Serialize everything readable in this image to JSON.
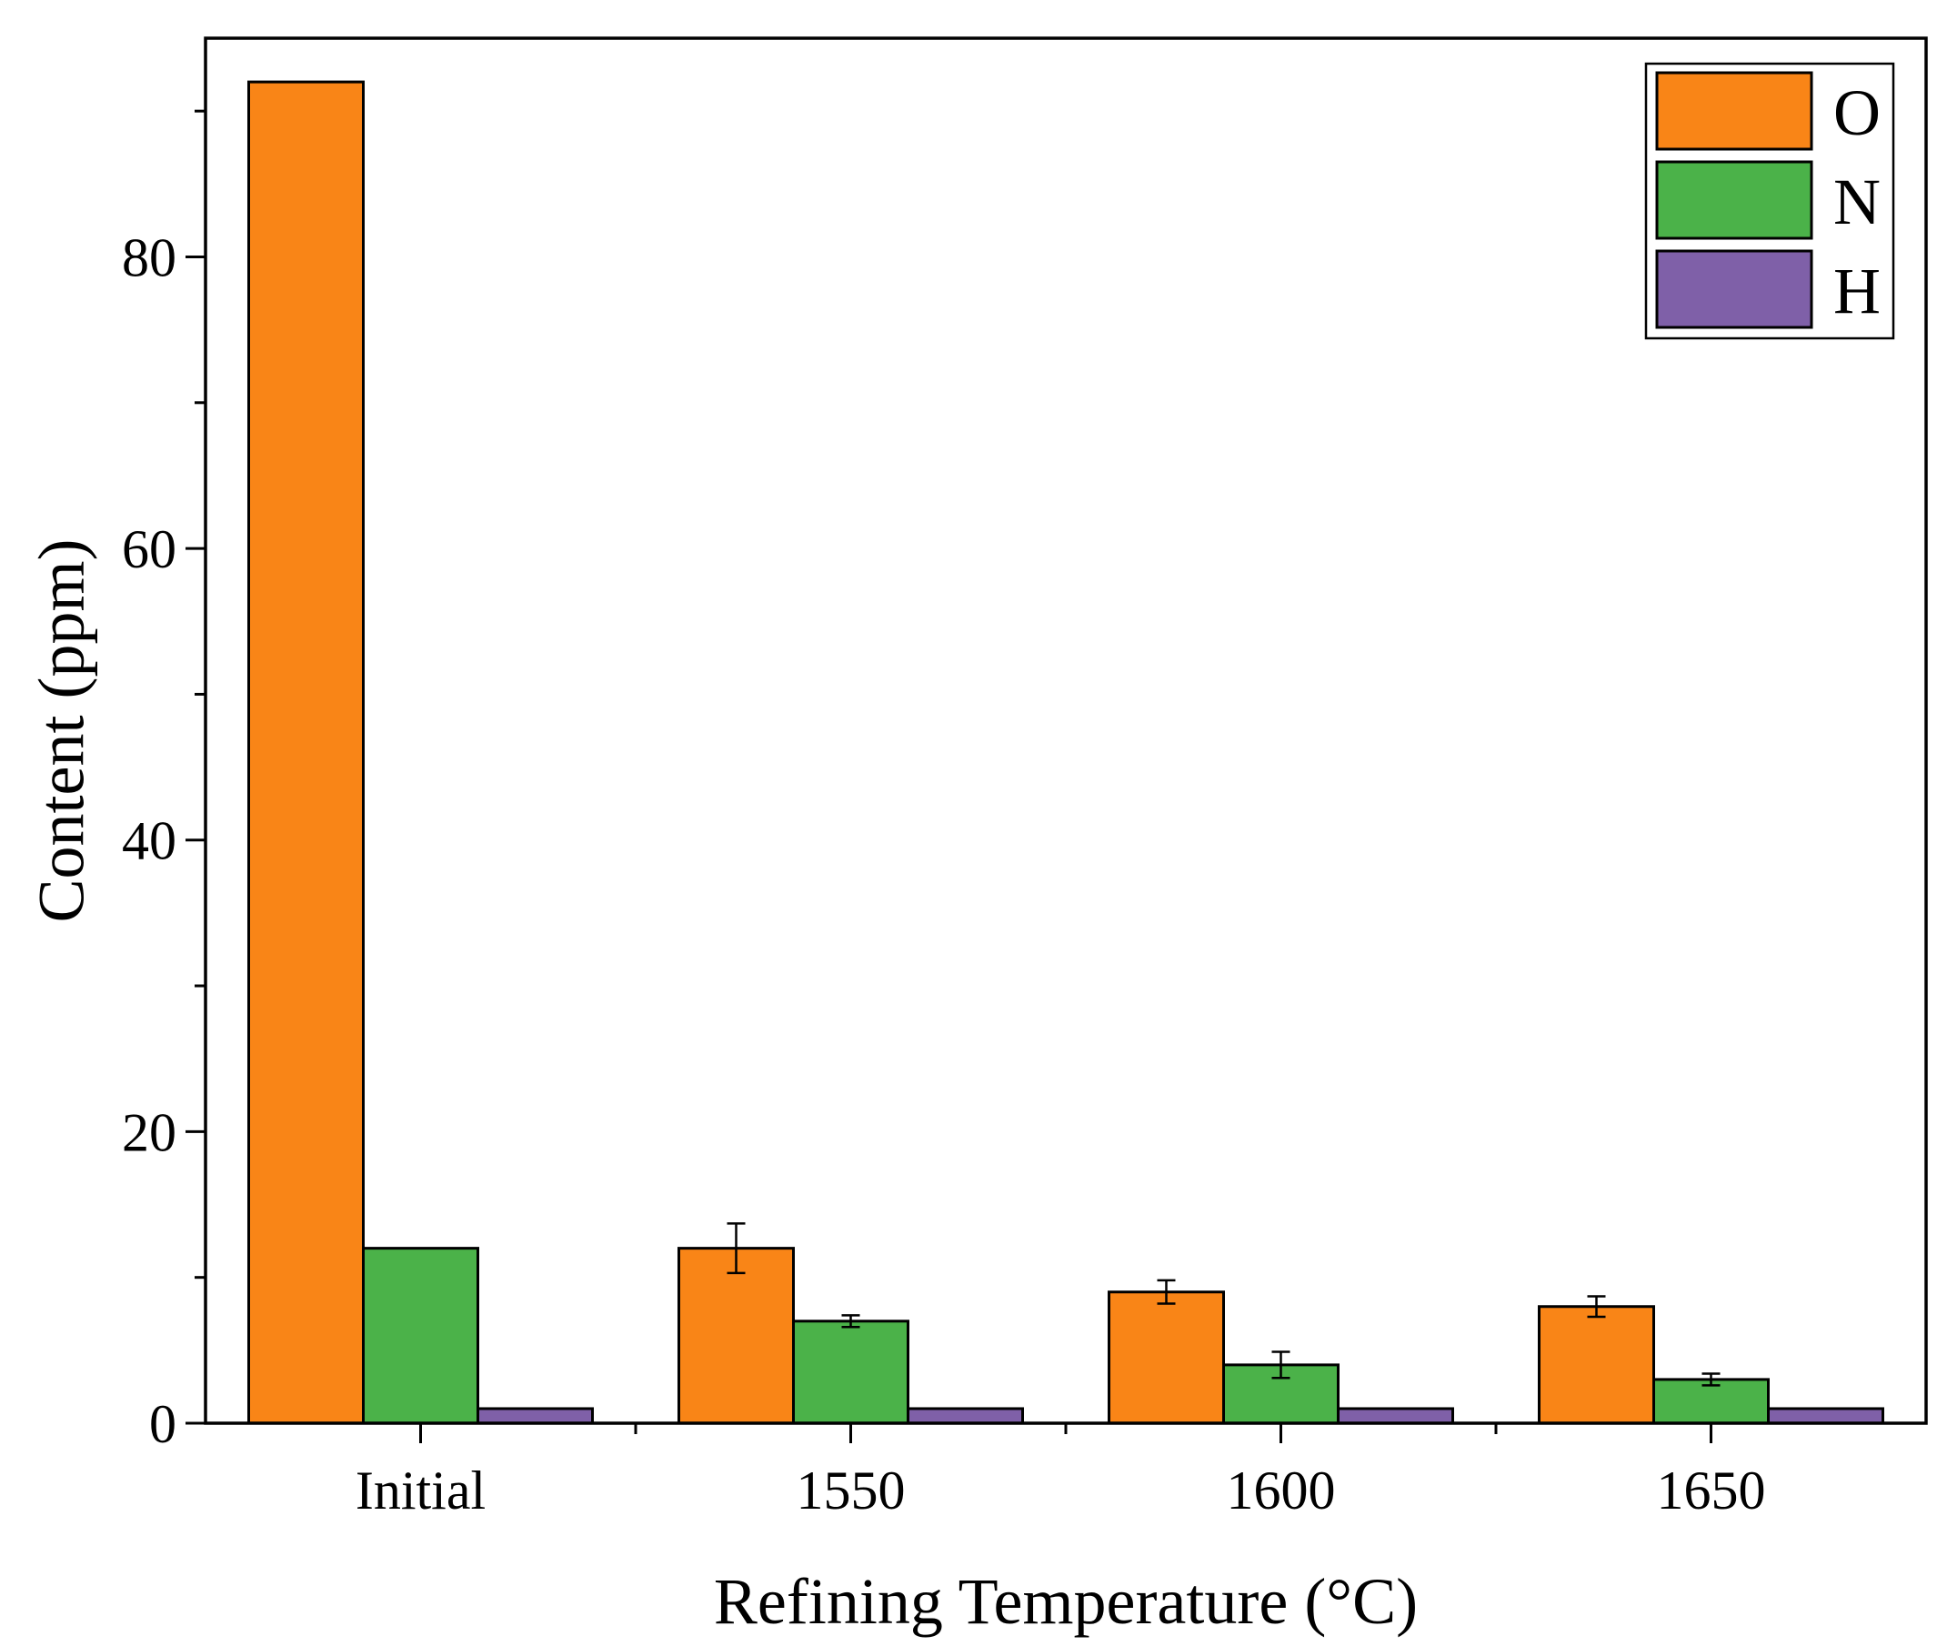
{
  "chart_data": {
    "type": "bar",
    "title": "",
    "xlabel": "Refining Temperature (°C)",
    "ylabel": "Content (ppm)",
    "categories": [
      "Initial",
      "1550",
      "1600",
      "1650"
    ],
    "ylim": [
      0,
      95
    ],
    "yticks": [
      0,
      20,
      40,
      60,
      80
    ],
    "yticks_minor": [
      10,
      30,
      50,
      70,
      90
    ],
    "legend_position": "top-right",
    "series": [
      {
        "name": "O",
        "color": "#F98517",
        "values": [
          92,
          12,
          9,
          8
        ],
        "errors": [
          0,
          1.7,
          0.8,
          0.7
        ]
      },
      {
        "name": "N",
        "color": "#4BB249",
        "values": [
          12,
          7,
          4,
          3
        ],
        "errors": [
          0,
          0.4,
          0.9,
          0.4
        ]
      },
      {
        "name": "H",
        "color": "#7F60A8",
        "values": [
          1,
          1,
          1,
          1
        ],
        "errors": [
          0,
          0,
          0,
          0
        ]
      }
    ]
  }
}
